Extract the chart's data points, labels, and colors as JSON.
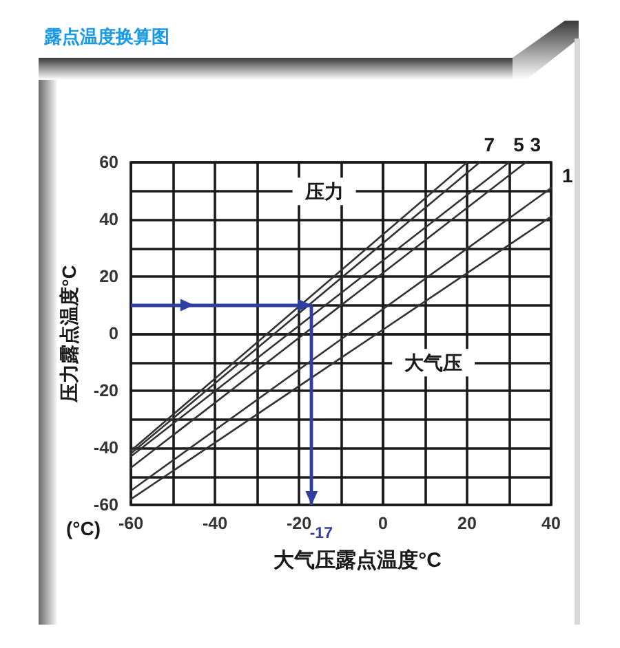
{
  "chart_data": {
    "type": "line",
    "title": "露点温度换算图",
    "xlabel": "大气压露点温度°C",
    "ylabel": "压力露点温度°C",
    "xlim": [
      -60,
      40
    ],
    "xticks": [
      -60,
      {
        "value": -50,
        "label": null
      },
      -40,
      {
        "value": -30,
        "label": null
      },
      -20,
      {
        "value": -10,
        "label": null
      },
      0,
      {
        "value": 10,
        "label": null
      },
      20,
      {
        "value": 30,
        "label": null
      },
      40
    ],
    "ylim": [
      -60,
      60
    ],
    "yticks": [
      -60,
      {
        "value": -50,
        "label": null
      },
      -40,
      {
        "value": -30,
        "label": null
      },
      -20,
      {
        "value": -10,
        "label": null
      },
      0,
      {
        "value": 10,
        "label": null
      },
      20,
      {
        "value": 30,
        "label": null
      },
      40,
      {
        "value": 50,
        "label": null
      },
      60
    ],
    "grid": true,
    "series": [
      {
        "color": "#333333",
        "x": [
          -60,
          20
        ],
        "values": [
          -41,
          60
        ]
      },
      {
        "name": "7",
        "color": "#333333",
        "x": [
          -60,
          23
        ],
        "values": [
          -42,
          60
        ]
      },
      {
        "name": "5",
        "color": "#333333",
        "x": [
          -60,
          30
        ],
        "values": [
          -43,
          60
        ]
      },
      {
        "name": "3",
        "color": "#333333",
        "x": [
          -60,
          34
        ],
        "values": [
          -47,
          60
        ]
      },
      {
        "name": "1",
        "color": "#333333",
        "x": [
          -60,
          40
        ],
        "values": [
          -55,
          51
        ]
      },
      {
        "color": "#333333",
        "x": [
          -60,
          40
        ],
        "values": [
          -58,
          41
        ]
      }
    ],
    "ref_lines": [
      {
        "axis": "y",
        "value": 10,
        "color": "#2f3ea0"
      },
      {
        "axis": "x",
        "value": -17,
        "label": "-17",
        "color": "#2f3ea0"
      }
    ],
    "annotations": [
      "压力",
      "大气压",
      "(°C)"
    ]
  }
}
